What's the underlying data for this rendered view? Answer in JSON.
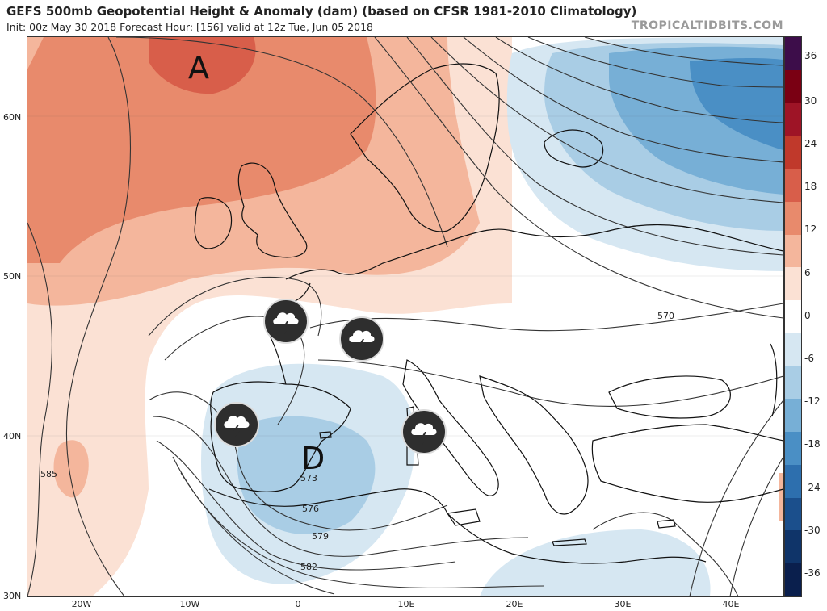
{
  "header": {
    "title": "GEFS 500mb Geopotential Height & Anomaly (dam) (based on CFSR 1981-2010 Climatology)",
    "subtitle": "Init: 00z May 30 2018   Forecast Hour: [156]   valid at 12z Tue, Jun 05 2018",
    "brand": "TROPICALTIDBITS.COM"
  },
  "map": {
    "lat_labels": [
      "60N",
      "50N",
      "40N",
      "30N"
    ],
    "lon_labels": [
      "20W",
      "10W",
      "0",
      "10E",
      "20E",
      "30E",
      "40E"
    ],
    "high_label": "A",
    "low_label": "D",
    "contour_labels": [
      "570",
      "573",
      "576",
      "579",
      "582",
      "585"
    ],
    "storm_icons": [
      "thunderstorm-icon",
      "thunderstorm-icon",
      "thunderstorm-icon",
      "thunderstorm-icon"
    ]
  },
  "colorbar": {
    "labels": [
      "36",
      "30",
      "24",
      "18",
      "12",
      "6",
      "0",
      "-6",
      "-12",
      "-18",
      "-24",
      "-30",
      "-36"
    ],
    "colors": [
      "#3d0d4a",
      "#7a0013",
      "#9e1426",
      "#c0392b",
      "#d85e4a",
      "#e88a6c",
      "#f4b69c",
      "#fbe1d4",
      "#ffffff",
      "#d6e7f2",
      "#a9cde5",
      "#77afd6",
      "#4a8fc5",
      "#2d6fae",
      "#1b4f8c",
      "#0f3469",
      "#0a1f4d"
    ],
    "accent_colors": {
      "warm": "#e07b5c",
      "cold": "#3d85c6"
    }
  }
}
